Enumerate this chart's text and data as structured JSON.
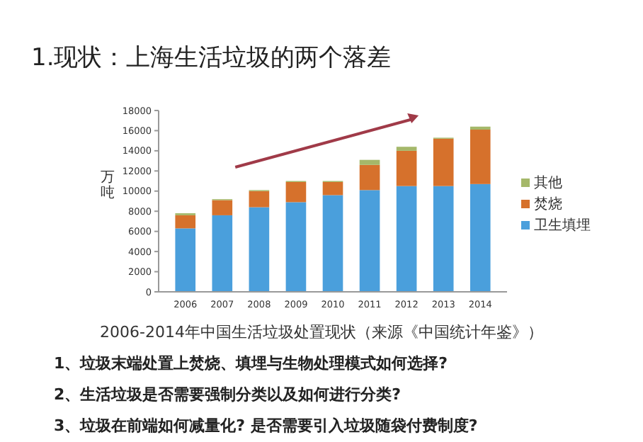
{
  "chart_data": {
    "type": "bar",
    "stacked": true,
    "title": "1.现状：上海生活垃圾的两个落差",
    "ylabel": "万吨",
    "categories": [
      "2006",
      "2007",
      "2008",
      "2009",
      "2010",
      "2011",
      "2012",
      "2013",
      "2014"
    ],
    "series": [
      {
        "name": "卫生填埋",
        "color": "#4a9fdc",
        "values": [
          6300,
          7600,
          8400,
          8900,
          9600,
          10100,
          10500,
          10500,
          10700
        ]
      },
      {
        "name": "焚烧",
        "color": "#d6712c",
        "values": [
          1300,
          1500,
          1600,
          2000,
          1300,
          2500,
          3500,
          4700,
          5400
        ]
      },
      {
        "name": "其他",
        "color": "#a5b86a",
        "values": [
          200,
          100,
          100,
          100,
          100,
          500,
          400,
          100,
          300
        ]
      }
    ],
    "ylim": [
      0,
      18000
    ],
    "yticks": [
      0,
      2000,
      4000,
      6000,
      8000,
      10000,
      12000,
      14000,
      16000,
      18000
    ],
    "grid": false,
    "legend": "right",
    "annotations": [
      "2006-2014年中国生活垃圾处置现状（来源《中国统计年鉴》）",
      "1、垃圾末端处置上焚烧、填埋与生物处理模式如何选择?",
      "2、生活垃圾是否需要强制分类以及如何进行分类?",
      "3、垃圾在前端如何减量化? 是否需要引入垃圾随袋付费制度?"
    ]
  }
}
